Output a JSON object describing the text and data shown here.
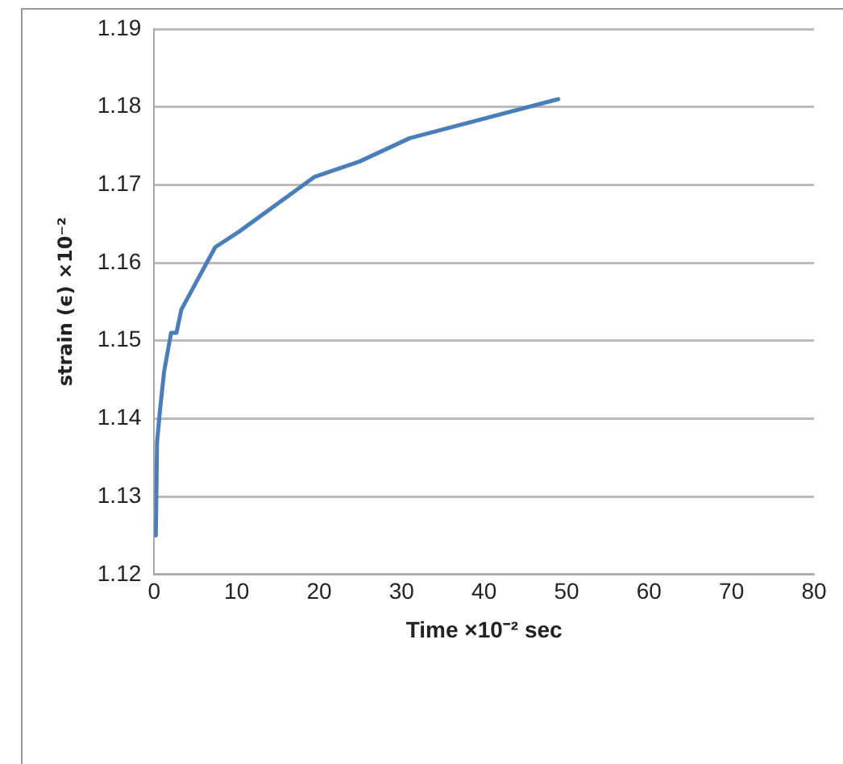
{
  "chart_data": {
    "type": "line",
    "xlabel": "Time ×10⁻² sec",
    "ylabel": "strain (ϵ) ×10⁻²",
    "x": [
      0.2,
      0.35,
      0.7,
      1.2,
      2.05,
      2.7,
      3.3,
      7.4,
      10.3,
      19.4,
      24.9,
      31,
      49
    ],
    "series": [
      {
        "color": "#4a7ebb",
        "values": [
          1.125,
          1.137,
          1.141,
          1.146,
          1.151,
          1.151,
          1.154,
          1.162,
          1.164,
          1.171,
          1.173,
          1.176,
          1.181
        ]
      }
    ],
    "xlim": [
      0,
      80
    ],
    "xticks": [
      0,
      10,
      20,
      30,
      40,
      50,
      60,
      70,
      80
    ],
    "ylim": [
      1.12,
      1.19
    ],
    "yticks": [
      1.12,
      1.13,
      1.14,
      1.15,
      1.16,
      1.17,
      1.18,
      1.19
    ],
    "grid": "y",
    "legend": false,
    "marker": "none",
    "line_style": "solid"
  }
}
